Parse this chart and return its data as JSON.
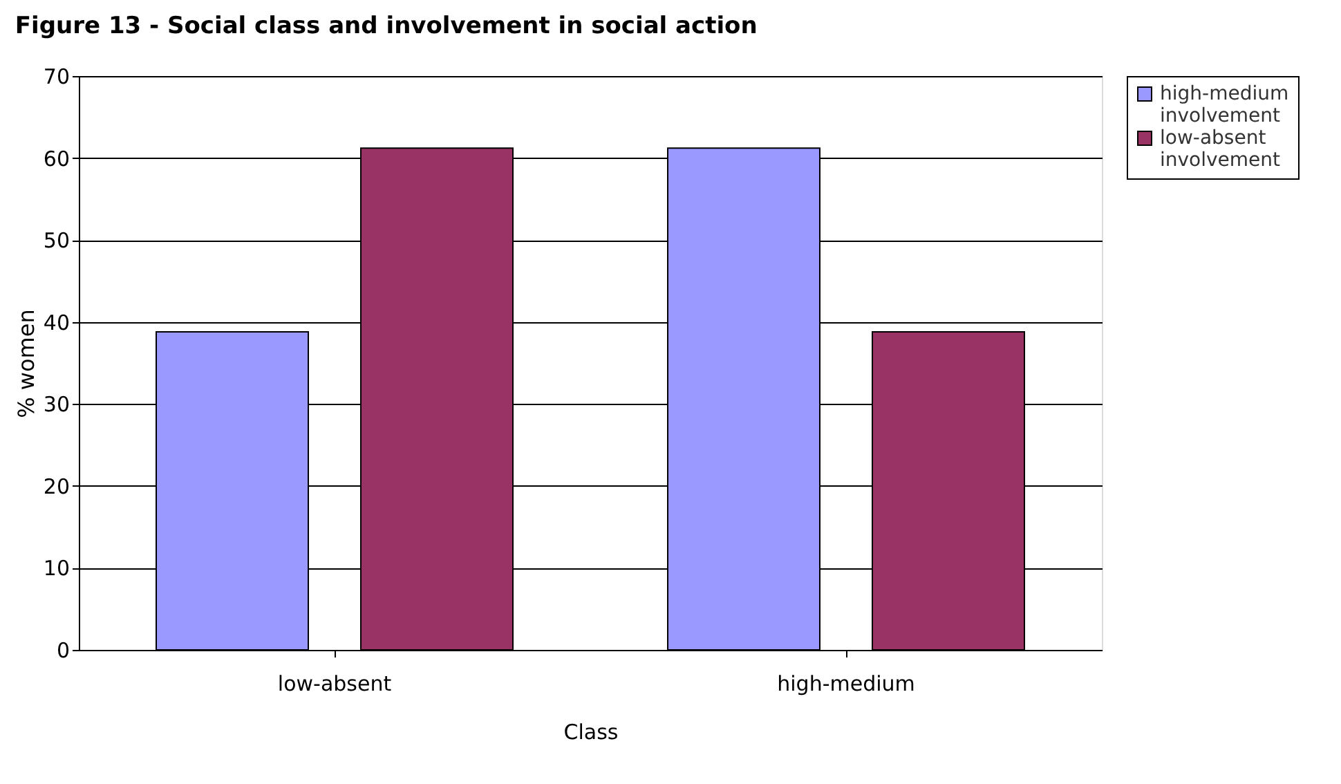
{
  "chart_data": {
    "type": "bar",
    "title": "Figure 13 - Social class and involvement in social action",
    "xlabel": "Class",
    "ylabel": "% women",
    "categories": [
      "low-absent",
      "high-medium"
    ],
    "series": [
      {
        "name": "high-medium involvement",
        "color": "#9999ff",
        "values": [
          38.8,
          61.2
        ]
      },
      {
        "name": "low-absent involvement",
        "color": "#993366",
        "values": [
          61.2,
          38.8
        ]
      }
    ],
    "ylim": [
      0,
      70
    ],
    "yticks": [
      0,
      10,
      20,
      30,
      40,
      50,
      60,
      70
    ],
    "grid": "y",
    "legend": "right"
  }
}
